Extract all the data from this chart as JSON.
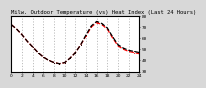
{
  "title": "Milw. Outdoor Temperature (vs) Heat Index (Last 24 Hours)",
  "bg_color": "#d8d8d8",
  "plot_bg_color": "#ffffff",
  "grid_color": "#888888",
  "line1_color": "#ff0000",
  "line2_color": "#000000",
  "hours": [
    0,
    1,
    2,
    3,
    4,
    5,
    6,
    7,
    8,
    9,
    10,
    11,
    12,
    13,
    14,
    15,
    16,
    17,
    18,
    19,
    20,
    21,
    22,
    23,
    24
  ],
  "temp": [
    72,
    68,
    63,
    57,
    52,
    47,
    43,
    40,
    38,
    37,
    38,
    42,
    47,
    54,
    62,
    70,
    74,
    72,
    68,
    60,
    53,
    50,
    48,
    47,
    46
  ],
  "heat_index": [
    72,
    68,
    63,
    57,
    52,
    47,
    43,
    40,
    38,
    37,
    38,
    42,
    47,
    54,
    63,
    71,
    75,
    73,
    69,
    61,
    54,
    51,
    49,
    48,
    47
  ],
  "ylim_min": 30,
  "ylim_max": 80,
  "yticks": [
    30,
    40,
    50,
    60,
    70,
    80
  ],
  "xtick_step": 2,
  "title_fontsize": 4.0,
  "tick_fontsize": 3.2,
  "linewidth": 0.9,
  "markersize": 1.2,
  "grid_linewidth": 0.4
}
